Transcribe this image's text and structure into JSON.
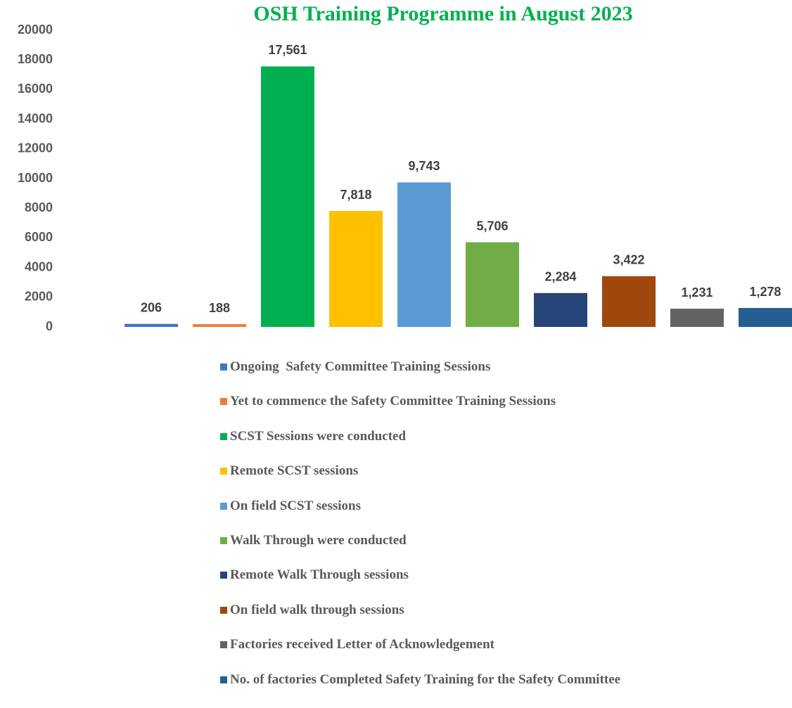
{
  "chart_data": {
    "type": "bar",
    "title": "OSH Training Programme in August 2023",
    "categories": [
      "Ongoing  Safety Committee Training Sessions",
      "Yet to commence the Safety Committee Training Sessions",
      "SCST Sessions were conducted",
      "Remote SCST sessions",
      "On field SCST sessions",
      "Walk Through were conducted",
      "Remote Walk Through sessions",
      "On field walk through sessions",
      "Factories received Letter of Acknowledgement",
      "No. of factories Completed Safety Training for the Safety Committee"
    ],
    "values": [
      206,
      188,
      17561,
      7818,
      9743,
      5706,
      2284,
      3422,
      1231,
      1278
    ],
    "value_labels": [
      "206",
      "188",
      "17,561",
      "7,818",
      "9,743",
      "5,706",
      "2,284",
      "3,422",
      "1,231",
      "1,278"
    ],
    "colors": [
      "#4472c4",
      "#ed7d31",
      "#00b050",
      "#ffc000",
      "#5b9bd5",
      "#70ad47",
      "#264478",
      "#9e480e",
      "#636363",
      "#255e91"
    ],
    "ylim": [
      0,
      20000
    ],
    "yticks": [
      0,
      2000,
      4000,
      6000,
      8000,
      10000,
      12000,
      14000,
      16000,
      18000,
      20000
    ],
    "grid": false,
    "legend": "bottom"
  }
}
